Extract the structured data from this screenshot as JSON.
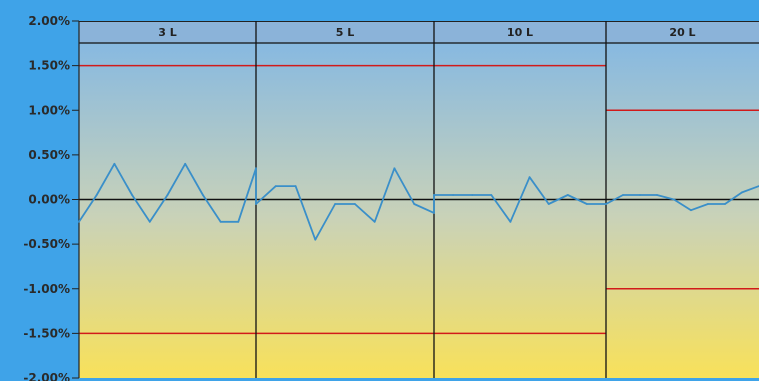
{
  "chart_data": {
    "type": "line",
    "title": "",
    "xlabel": "",
    "ylabel": "",
    "y_tick_labels": [
      "2.00%",
      "1.50%",
      "1.00%",
      "0.50%",
      "0.00%",
      "-0.50%",
      "-1.00%",
      "-1.50%",
      "-2.00%"
    ],
    "ylim": [
      -2.0,
      2.0
    ],
    "grid": false,
    "legend": "none",
    "background_gradient": [
      "#7fb6e6",
      "#c9d2b8",
      "#f8e15a"
    ],
    "colors": {
      "series": "#3a8fc9",
      "limit_line": "#d11a1a",
      "zero_line": "#111111",
      "section_divider": "#111111"
    },
    "sections": [
      {
        "label": "3 L",
        "tolerance_upper": 1.5,
        "tolerance_lower": -1.5
      },
      {
        "label": "5 L",
        "tolerance_upper": 1.5,
        "tolerance_lower": -1.5
      },
      {
        "label": "10 L",
        "tolerance_upper": 1.5,
        "tolerance_lower": -1.5
      },
      {
        "label": "20 L",
        "tolerance_upper": 1.0,
        "tolerance_lower": -1.0
      }
    ],
    "series": [
      {
        "values": [
          [
            -0.25,
            0.05,
            0.4,
            0.05,
            -0.25,
            0.05,
            0.4,
            0.05,
            -0.25,
            -0.25,
            0.35
          ],
          [
            -0.05,
            0.15,
            0.15,
            -0.45,
            -0.05,
            -0.05,
            -0.25,
            0.35,
            -0.05,
            -0.15
          ],
          [
            0.05,
            0.05,
            0.05,
            0.05,
            -0.25,
            0.25,
            -0.05,
            0.05,
            -0.05,
            -0.05
          ],
          [
            -0.05,
            0.05,
            0.05,
            0.05,
            0.0,
            -0.12,
            -0.05,
            -0.05,
            0.08,
            0.15
          ]
        ]
      }
    ]
  }
}
